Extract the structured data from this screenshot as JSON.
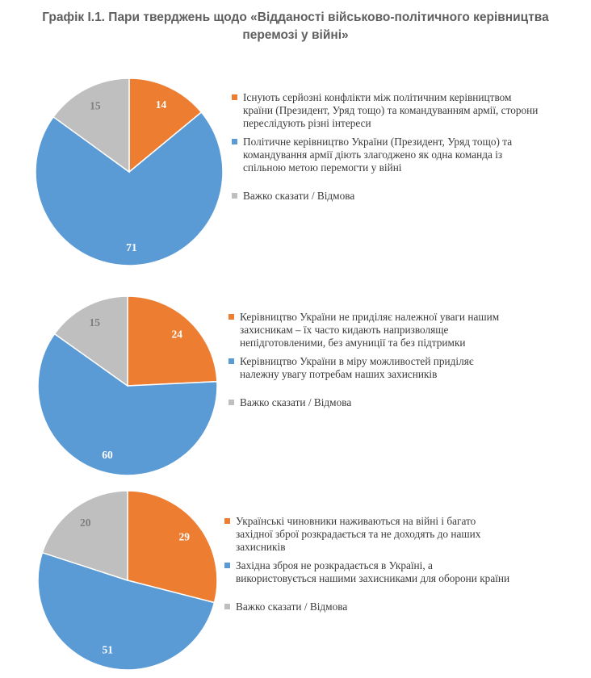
{
  "title": {
    "line1": "Графік І.1. Пари тверджень щодо «Відданості військово-політичного керівництва",
    "line2": "перемозі у війні»"
  },
  "colors": {
    "orange": "#ED7D31",
    "blue": "#5B9BD5",
    "gray": "#BFBFBF"
  },
  "chart_data": [
    {
      "type": "pie",
      "start_angle": 0,
      "slices": [
        {
          "label": "Існують серйозні конфлікти між політичним керівництвом країни (Президент, Уряд тощо) та командуванням армії, сторони переслідують різні інтереси",
          "value": 14,
          "color": "#ED7D31"
        },
        {
          "label": "Політичне керівництво України (Президент, Уряд тощо) та командування армії діють злагоджено як одна команда із спільною метою перемогти у війні",
          "value": 71,
          "color": "#5B9BD5"
        },
        {
          "label": "Важко сказати / Відмова",
          "value": 15,
          "color": "#BFBFBF"
        }
      ]
    },
    {
      "type": "pie",
      "start_angle": 0,
      "slices": [
        {
          "label": "Керівництво України не приділяє належної уваги нашим захисникам – їх часто кидають напризволяще непідготовленими, без амуниції та без підтримки",
          "value": 24,
          "color": "#ED7D31"
        },
        {
          "label": "Керівництво України в міру можливостей приділяє належну увагу потребам наших захисників",
          "value": 60,
          "color": "#5B9BD5"
        },
        {
          "label": "Важко сказати / Відмова",
          "value": 15,
          "color": "#BFBFBF"
        }
      ]
    },
    {
      "type": "pie",
      "start_angle": 0,
      "slices": [
        {
          "label": "Українські чиновники наживаються на війні і багато західної зброї розкрадається та не доходять до наших захисників",
          "value": 29,
          "color": "#ED7D31"
        },
        {
          "label": "Західна зброя не розкрадається в Україні, а використовується нашими захисниками для оборони країни",
          "value": 51,
          "color": "#5B9BD5"
        },
        {
          "label": "Важко сказати / Відмова",
          "value": 20,
          "color": "#BFBFBF"
        }
      ]
    }
  ]
}
